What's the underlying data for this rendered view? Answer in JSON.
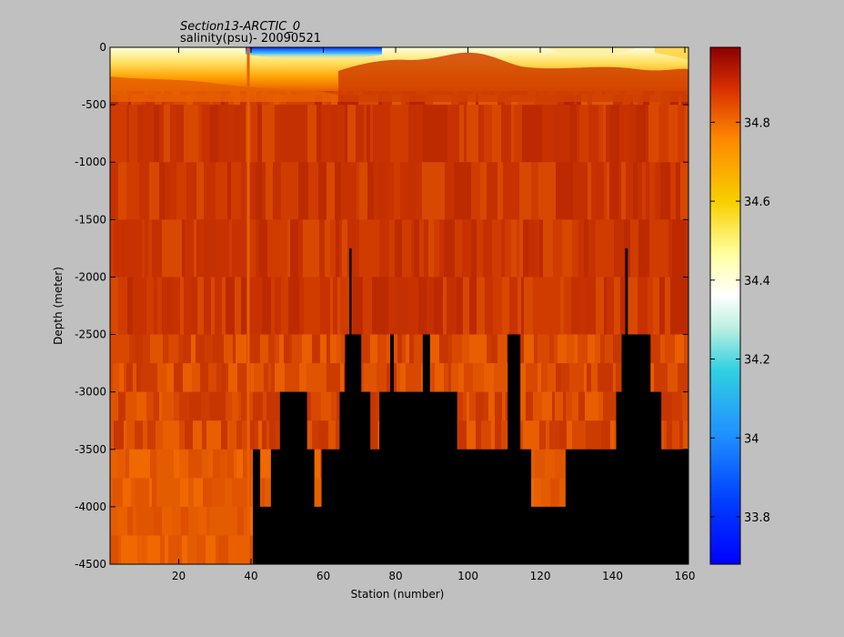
{
  "figure": {
    "title_line1": "Section13-ARCTIC_0",
    "title_line2": "salinity(psu)- 20090521"
  },
  "chart_data": {
    "type": "heatmap",
    "title": "Section13-ARCTIC_0",
    "subtitle": "salinity(psu)- 20090521",
    "xlabel": "Station (number)",
    "ylabel": "Depth (meter)",
    "xlim": [
      1,
      161
    ],
    "ylim": [
      -4500,
      0
    ],
    "xticks": [
      20,
      40,
      60,
      80,
      100,
      120,
      140,
      160
    ],
    "yticks": [
      0,
      -500,
      -1000,
      -1500,
      -2000,
      -2500,
      -3000,
      -3500,
      -4000,
      -4500
    ],
    "colorbar": {
      "colormap": "jet",
      "clim": [
        33.68,
        34.99
      ],
      "ticks": [
        "33.8",
        "34",
        "34.2",
        "34.4",
        "34.6",
        "34.8"
      ]
    },
    "depth_bands": [
      {
        "top": 0,
        "bottom": -150,
        "salinity": "33.7–34.5 (surface fresh layer)"
      },
      {
        "top": -150,
        "bottom": -500,
        "salinity": "34.75–34.93"
      },
      {
        "top": -500,
        "bottom": -2500,
        "salinity": "34.86–34.93"
      },
      {
        "top": -2500,
        "bottom": -4500,
        "salinity": "34.84–34.92"
      }
    ],
    "seafloor_profile": [
      {
        "x": 1,
        "depth": -4500
      },
      {
        "x": 40.5,
        "depth": -4500
      },
      {
        "x": 40.5,
        "depth": -3500
      },
      {
        "x": 42.5,
        "depth": -3500
      },
      {
        "x": 42.5,
        "depth": -4000
      },
      {
        "x": 45.5,
        "depth": -4000
      },
      {
        "x": 45.5,
        "depth": -3500
      },
      {
        "x": 48,
        "depth": -3500
      },
      {
        "x": 48,
        "depth": -3000
      },
      {
        "x": 55.5,
        "depth": -3000
      },
      {
        "x": 55.5,
        "depth": -3500
      },
      {
        "x": 57.5,
        "depth": -3500
      },
      {
        "x": 57.5,
        "depth": -4000
      },
      {
        "x": 59.5,
        "depth": -4000
      },
      {
        "x": 59.5,
        "depth": -3500
      },
      {
        "x": 64.5,
        "depth": -3500
      },
      {
        "x": 64.5,
        "depth": -3000
      },
      {
        "x": 66,
        "depth": -3000
      },
      {
        "x": 66,
        "depth": -2500
      },
      {
        "x": 67.2,
        "depth": -2500
      },
      {
        "x": 67.2,
        "depth": -1750
      },
      {
        "x": 67.8,
        "depth": -1750
      },
      {
        "x": 67.8,
        "depth": -2500
      },
      {
        "x": 70.5,
        "depth": -2500
      },
      {
        "x": 70.5,
        "depth": -3000
      },
      {
        "x": 73,
        "depth": -3000
      },
      {
        "x": 73,
        "depth": -3500
      },
      {
        "x": 75.5,
        "depth": -3500
      },
      {
        "x": 75.5,
        "depth": -3000
      },
      {
        "x": 78.5,
        "depth": -3000
      },
      {
        "x": 78.5,
        "depth": -2500
      },
      {
        "x": 79.5,
        "depth": -2500
      },
      {
        "x": 79.5,
        "depth": -3000
      },
      {
        "x": 87.5,
        "depth": -3000
      },
      {
        "x": 87.5,
        "depth": -2500
      },
      {
        "x": 89.5,
        "depth": -2500
      },
      {
        "x": 89.5,
        "depth": -3000
      },
      {
        "x": 97,
        "depth": -3000
      },
      {
        "x": 97,
        "depth": -3500
      },
      {
        "x": 111,
        "depth": -3500
      },
      {
        "x": 111,
        "depth": -2500
      },
      {
        "x": 114.5,
        "depth": -2500
      },
      {
        "x": 114.5,
        "depth": -3500
      },
      {
        "x": 117.5,
        "depth": -3500
      },
      {
        "x": 117.5,
        "depth": -4000
      },
      {
        "x": 127,
        "depth": -4000
      },
      {
        "x": 127,
        "depth": -3500
      },
      {
        "x": 141,
        "depth": -3500
      },
      {
        "x": 141,
        "depth": -3000
      },
      {
        "x": 142.5,
        "depth": -3000
      },
      {
        "x": 142.5,
        "depth": -2500
      },
      {
        "x": 143.5,
        "depth": -2500
      },
      {
        "x": 143.5,
        "depth": -1750
      },
      {
        "x": 144.2,
        "depth": -1750
      },
      {
        "x": 144.2,
        "depth": -2500
      },
      {
        "x": 150.5,
        "depth": -2500
      },
      {
        "x": 150.5,
        "depth": -3000
      },
      {
        "x": 153.5,
        "depth": -3000
      },
      {
        "x": 153.5,
        "depth": -3500
      },
      {
        "x": 161,
        "depth": -3500
      },
      {
        "x": 161,
        "depth": -4500
      }
    ]
  }
}
